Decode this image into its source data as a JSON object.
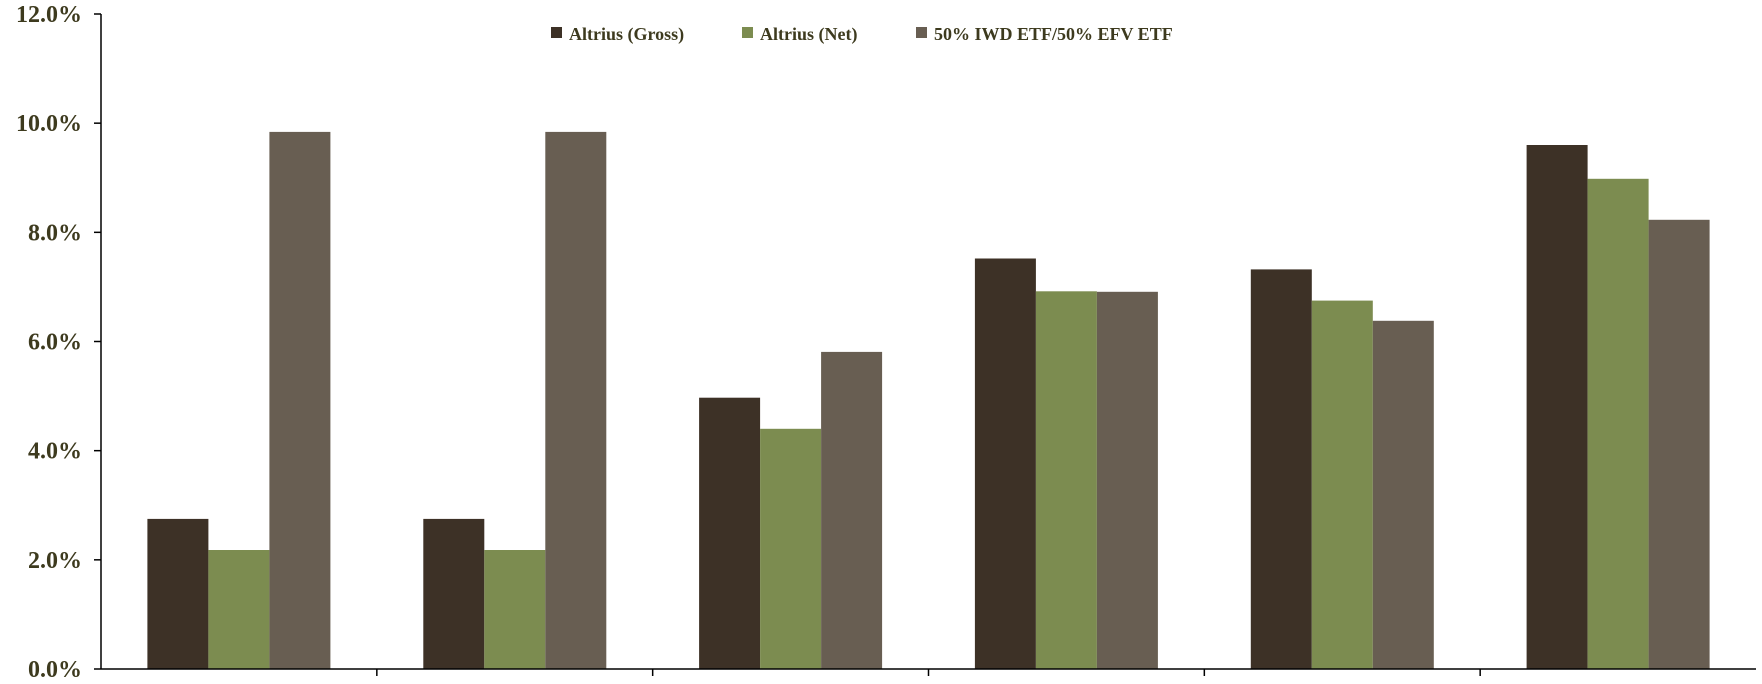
{
  "chart_data": {
    "type": "bar",
    "categories": [
      "",
      "",
      "",
      "",
      "",
      ""
    ],
    "series": [
      {
        "name": "Altrius (Gross)",
        "color": "#3d3126",
        "values": [
          2.75,
          2.75,
          4.97,
          7.52,
          7.32,
          9.6
        ]
      },
      {
        "name": "Altrius (Net)",
        "color": "#7c8c50",
        "values": [
          2.18,
          2.18,
          4.4,
          6.92,
          6.75,
          8.98
        ]
      },
      {
        "name": "50% IWD ETF/50% EFV ETF",
        "color": "#685e52",
        "values": [
          9.84,
          9.84,
          5.81,
          6.91,
          6.38,
          8.23
        ]
      }
    ],
    "y_ticks": [
      "0.0%",
      "2.0%",
      "4.0%",
      "6.0%",
      "8.0%",
      "10.0%",
      "12.0%"
    ],
    "ylim": [
      0,
      12
    ],
    "title": "",
    "xlabel": "",
    "ylabel": "",
    "grid": false,
    "legend_position": "top-center"
  }
}
